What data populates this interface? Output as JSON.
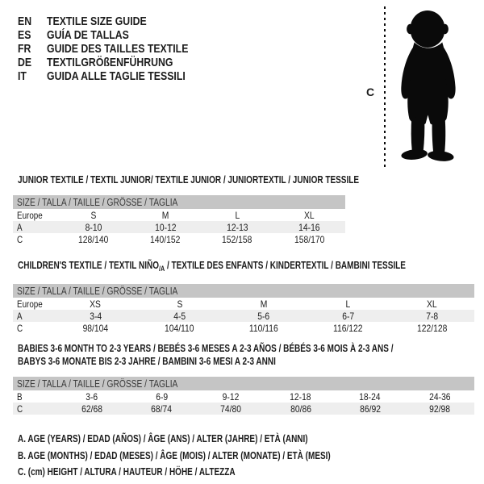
{
  "languages": [
    {
      "code": "EN",
      "label": "TEXTILE SIZE GUIDE"
    },
    {
      "code": "ES",
      "label": "GUÍA DE TALLAS"
    },
    {
      "code": "FR",
      "label": "GUIDE DES TAILLES TEXTILE"
    },
    {
      "code": "DE",
      "label": "TEXTILGRÖßENFÜHRUNG"
    },
    {
      "code": "IT",
      "label": "GUIDA ALLE TAGLIE TESSILI"
    }
  ],
  "figure": {
    "height_label": "C",
    "silhouette": "baby-toddler-silhouette"
  },
  "sections": [
    {
      "id": "junior",
      "title": "JUNIOR TEXTILE / TEXTIL JUNIOR/ TEXTILE JUNIOR / JUNIORTEXTIL / JUNIOR TESSILE",
      "table": {
        "size_header": "SIZE / TALLA / TAILLE / GRÖSSE / TAGLIA",
        "rows": [
          {
            "label": "Europe",
            "values": [
              "S",
              "M",
              "L",
              "XL"
            ]
          },
          {
            "label": "A",
            "values": [
              "8-10",
              "10-12",
              "12-13",
              "14-16"
            ]
          },
          {
            "label": "C",
            "values": [
              "128/140",
              "140/152",
              "152/158",
              "158/170"
            ]
          }
        ]
      }
    },
    {
      "id": "children",
      "title_pre": "CHILDREN'S TEXTILE / TEXTIL NIÑO",
      "title_sub": "/A",
      "title_post": " / TEXTILE DES ENFANTS / KINDERTEXTIL / BAMBINI TESSILE",
      "table": {
        "size_header": "SIZE / TALLA / TAILLE / GRÖSSE / TAGLIA",
        "rows": [
          {
            "label": "Europe",
            "values": [
              "XS",
              "S",
              "M",
              "L",
              "XL"
            ]
          },
          {
            "label": "A",
            "values": [
              "3-4",
              "4-5",
              "5-6",
              "6-7",
              "7-8"
            ]
          },
          {
            "label": "C",
            "values": [
              "98/104",
              "104/110",
              "110/116",
              "116/122",
              "122/128"
            ]
          }
        ]
      }
    },
    {
      "id": "babies",
      "title_line1": "BABIES 3-6 MONTH TO 2-3 YEARS / BEBÉS 3-6 MESES A 2-3 AÑOS / BÉBÉS 3-6 MOIS À 2-3 ANS /",
      "title_line2": "BABYS 3-6 MONATE BIS 2-3 JAHRE / BAMBINI 3-6 MESI A 2-3 ANNI",
      "table": {
        "size_header": "SIZE / TALLA / TAILLE / GRÖSSE / TAGLIA",
        "rows": [
          {
            "label": "B",
            "values": [
              "3-6",
              "6-9",
              "9-12",
              "12-18",
              "18-24",
              "24-36"
            ]
          },
          {
            "label": "C",
            "values": [
              "62/68",
              "68/74",
              "74/80",
              "80/86",
              "86/92",
              "92/98"
            ]
          }
        ]
      }
    }
  ],
  "footnotes": [
    "A. AGE (YEARS) / EDAD (AÑOS) / ÂGE (ANS) / ALTER (JAHRE) / ETÀ (ANNI)",
    "B. AGE (MONTHS) / EDAD (MESES) / ÂGE (MOIS) / ALTER (MONATE) / ETÀ (MESI)",
    "C. (cm) HEIGHT / ALTURA / HAUTEUR / HÖHE / ALTEZZA"
  ],
  "colors": {
    "size_bar_gray": "#c5c5c5",
    "row_shade_gray": "#eeeeee",
    "text": "#1c1c1c",
    "silhouette_black": "#0a0a0a"
  }
}
